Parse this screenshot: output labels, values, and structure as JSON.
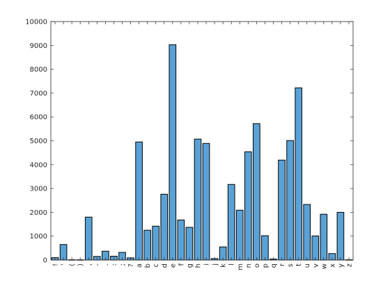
{
  "chart_data": {
    "type": "bar",
    "title": "",
    "xlabel": "",
    "ylabel": "",
    "ylim": [
      0,
      10000
    ],
    "yticks": [
      0,
      1000,
      2000,
      3000,
      4000,
      5000,
      6000,
      7000,
      8000,
      9000,
      10000
    ],
    "grid": false,
    "bar_color": "#5aa2d6",
    "edge_color": "#000000",
    "categories": [
      "!",
      "'",
      "(",
      ")",
      ",",
      "-",
      ".",
      ":",
      ";",
      "?",
      "a",
      "b",
      "c",
      "d",
      "e",
      "f",
      "g",
      "h",
      "i",
      "j",
      "k",
      "l",
      "m",
      "n",
      "o",
      "p",
      "q",
      "r",
      "s",
      "t",
      "u",
      "v",
      "w",
      "x",
      "y",
      "z"
    ],
    "values": [
      100,
      650,
      10,
      10,
      1800,
      150,
      370,
      160,
      320,
      90,
      4950,
      1250,
      1420,
      2760,
      9030,
      1680,
      1370,
      5070,
      4890,
      60,
      550,
      3170,
      2090,
      4540,
      5720,
      1020,
      40,
      4190,
      5010,
      7220,
      2330,
      1010,
      1920,
      270,
      2000,
      10
    ]
  }
}
